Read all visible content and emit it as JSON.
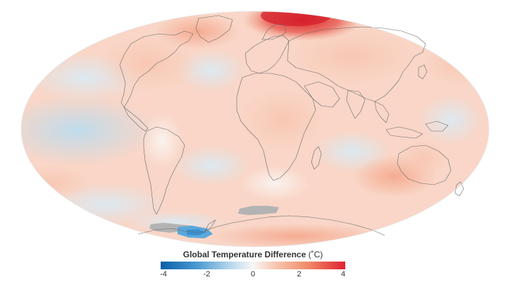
{
  "legend": {
    "title": "Global Temperature Difference",
    "unit": "(˚C)",
    "min": -4,
    "max": 4,
    "ticks": [
      "-4",
      "-2",
      "0",
      "2",
      "4"
    ],
    "tick_values": [
      -4,
      -2,
      0,
      2,
      4
    ],
    "colors": [
      "#0a5fa8",
      "#4b9ad1",
      "#b9d8ec",
      "#f7f7f7",
      "#f9c7b0",
      "#f08a68",
      "#e0222f"
    ]
  },
  "map": {
    "projection": "Mollweide",
    "no_data_color": "#b3b3b3",
    "coastline_color": "#6a6a6a"
  }
}
